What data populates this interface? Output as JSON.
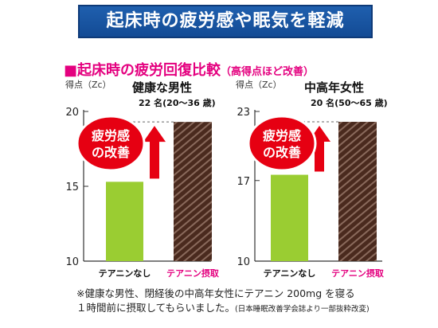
{
  "banner": "起床時の疲労感や眠気を軽減",
  "subtitle": {
    "marker": "■",
    "main": "起床時の疲労回復比較",
    "note": "（高得点ほど改善）"
  },
  "badge": {
    "line1": "疲労感",
    "line2": "の改善"
  },
  "colors": {
    "placebo": "#9acd32",
    "theanine": "#4a2a1e",
    "accent": "#e4007f",
    "arrow": "#e60012",
    "banner": "#1f5fae"
  },
  "chart_data": [
    {
      "type": "bar",
      "title": "健康な男性",
      "subtitle": "22 名(20～36 歳)",
      "ylabel": "得点（Zc）",
      "ylim": [
        10,
        20
      ],
      "yticks": [
        10,
        15,
        20
      ],
      "categories": [
        "テアニンなし",
        "テアニン摂取"
      ],
      "values": [
        15.3,
        19.3
      ]
    },
    {
      "type": "bar",
      "title": "中高年女性",
      "subtitle": "20 名(50～65 歳)",
      "ylabel": "得点（Zc）",
      "ylim": [
        10,
        23
      ],
      "yticks": [
        10,
        17,
        23
      ],
      "categories": [
        "テアニンなし",
        "テアニン摂取"
      ],
      "values": [
        17.5,
        22.1
      ]
    }
  ],
  "footnote": {
    "line1": "※健康な男性、閉経後の中高年女性にテアニン 200mg を寝る",
    "line2": "１時間前に摂取してもらいました。",
    "source": "(日本睡眠改善学会誌より一部抜粋改変)"
  }
}
